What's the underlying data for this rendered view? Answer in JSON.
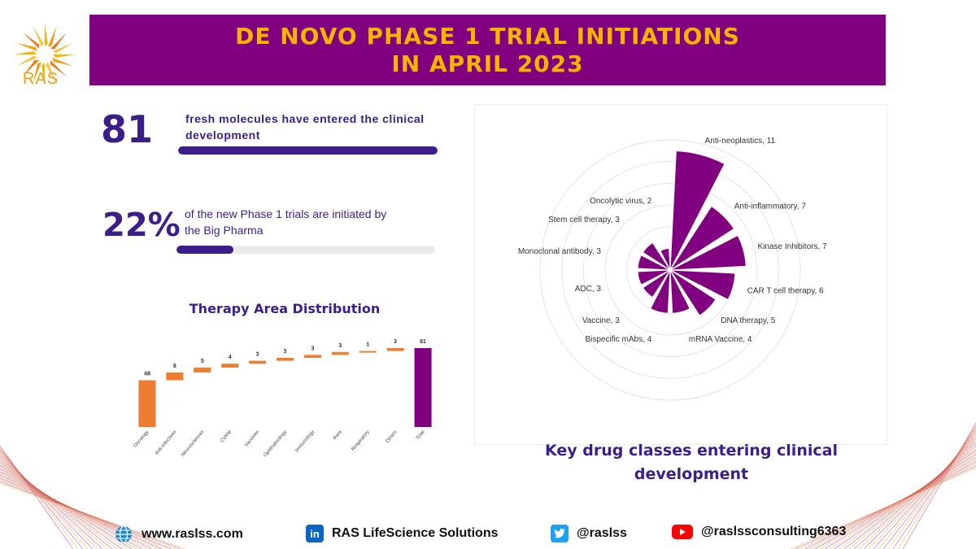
{
  "brand": {
    "logo_text": "RAS"
  },
  "header": {
    "title_line1": "DE NOVO PHASE 1 TRIAL INITIATIONS",
    "title_line2": "IN APRIL 2023"
  },
  "stats": [
    {
      "number": "81",
      "text": "fresh molecules have entered the clinical development",
      "progress": 1.0
    },
    {
      "number": "22%",
      "text": "of the new Phase 1 trials are initiated by the Big Pharma",
      "progress": 0.22
    }
  ],
  "colors": {
    "purple": "#800080",
    "navy": "#3b1e8c",
    "orange": "#ed7d31",
    "gold": "#f7b500"
  },
  "chart_data": [
    {
      "type": "bar",
      "subtype": "waterfall",
      "title": "Therapy Area Distribution",
      "categories": [
        "Oncology",
        "Anti-infectives",
        "Neurosciences",
        "CVRM",
        "Vaccines",
        "Ophthalmology",
        "Immunology",
        "Rare",
        "Respiratory",
        "Others",
        "Total"
      ],
      "values": [
        48,
        8,
        5,
        4,
        3,
        3,
        3,
        3,
        1,
        3,
        81
      ],
      "total_category": "Total",
      "ylim": [
        0,
        81
      ]
    },
    {
      "type": "bar",
      "subtype": "polar",
      "title": "Key drug classes entering clinical development",
      "categories": [
        "Anti-neoplastics",
        "Anti-inflammatory",
        "Kinase Inhibitors",
        "CAR T cell therapy",
        "DNA therapy",
        "mRNA Vaccine",
        "Bispecific mAbs",
        "Vaccine",
        "ADC",
        "Monoclonal antibody",
        "Stem cell therapy",
        "Oncolytic virus"
      ],
      "values": [
        11,
        7,
        7,
        6,
        5,
        4,
        4,
        3,
        3,
        3,
        3,
        2
      ],
      "rlim": [
        0,
        12
      ]
    }
  ],
  "footer": {
    "website": "www.raslss.com",
    "linkedin": "RAS LifeScience Solutions",
    "twitter": "@raslss",
    "youtube": "@raslssconsulting6363"
  },
  "icons": [
    "globe-icon",
    "linkedin-icon",
    "twitter-icon",
    "youtube-icon",
    "sun-logo-icon"
  ]
}
